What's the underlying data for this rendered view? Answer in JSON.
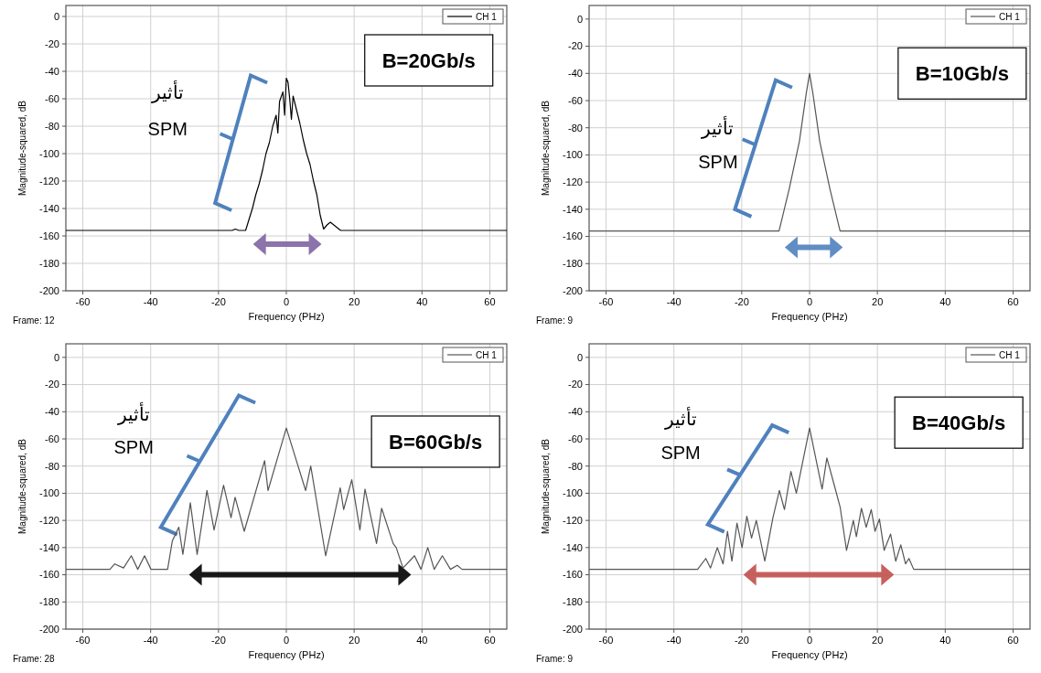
{
  "chart_data": [
    {
      "type": "line",
      "xlabel": "Frequency (PHz)",
      "ylabel": "Magnitude-squared, dB",
      "annotations": [
        "B=20Gb/s",
        "تأثير",
        "SPM",
        "Frame: 12"
      ],
      "xlim": [
        -65,
        65
      ],
      "ylim": [
        -200,
        8
      ],
      "xticks": [
        -60,
        -40,
        -20,
        0,
        20,
        40,
        60
      ],
      "yticks": [
        0,
        -20,
        -40,
        -60,
        -80,
        -100,
        -120,
        -140,
        -160,
        -180,
        -200
      ],
      "grid": true,
      "legend": "top right",
      "marker": "none",
      "line_style": "solid",
      "series": [
        {
          "name": "CH 1",
          "color": "#000000",
          "x": [
            -65,
            -16,
            -15,
            -14,
            -12,
            -11,
            -10,
            -9,
            -8,
            -7,
            -6,
            -5,
            -4,
            -3,
            -2.5,
            -2,
            -1,
            -0.5,
            0,
            0.5,
            1,
            1.5,
            2,
            3,
            4,
            5,
            6,
            7,
            8,
            9,
            10,
            11,
            12,
            13,
            14,
            15,
            16,
            18,
            65
          ],
          "values": [
            -156,
            -156,
            -155,
            -156,
            -156,
            -148,
            -140,
            -130,
            -122,
            -112,
            -100,
            -92,
            -80,
            -72,
            -85,
            -62,
            -55,
            -72,
            -45,
            -48,
            -60,
            -75,
            -58,
            -68,
            -78,
            -90,
            -100,
            -108,
            -120,
            -130,
            -145,
            -155,
            -152,
            -150,
            -152,
            -154,
            -156,
            -156,
            -156
          ]
        }
      ]
    },
    {
      "type": "line",
      "xlabel": "Frequency (PHz)",
      "ylabel": "Magnitude-squared, dB",
      "annotations": [
        "B=10Gb/s",
        "تأثير",
        "SPM",
        "Frame: 9"
      ],
      "xlim": [
        -65,
        65
      ],
      "ylim": [
        -200,
        10
      ],
      "xticks": [
        -60,
        -40,
        -20,
        0,
        20,
        40,
        60
      ],
      "yticks": [
        0,
        -20,
        -40,
        -60,
        -80,
        -100,
        -120,
        -140,
        -160,
        -180,
        -200
      ],
      "grid": true,
      "legend": "top right",
      "marker": "none",
      "line_style": "solid",
      "series": [
        {
          "name": "CH 1",
          "color": "#555555",
          "x": [
            -65,
            -9,
            -6,
            -3,
            -1,
            0,
            1,
            3,
            6,
            9,
            65
          ],
          "values": [
            -156,
            -156,
            -125,
            -90,
            -55,
            -40,
            -55,
            -90,
            -125,
            -156,
            -156
          ]
        }
      ]
    },
    {
      "type": "line",
      "xlabel": "Frequency (PHz)",
      "ylabel": "Magnitude-squared, dB",
      "annotations": [
        "B=60Gb/s",
        "تأثير",
        "SPM",
        "Frame: 28"
      ],
      "xlim": [
        -65,
        65
      ],
      "ylim": [
        -200,
        10
      ],
      "xticks": [
        -60,
        -40,
        -20,
        0,
        20,
        40,
        60
      ],
      "yticks": [
        0,
        -20,
        -40,
        -60,
        -80,
        -100,
        -120,
        -140,
        -160,
        -180,
        -200
      ],
      "grid": true,
      "legend": "top right",
      "marker": "none",
      "line_style": "solid",
      "series": [
        {
          "name": "CH 1",
          "color": "#555555",
          "x": [
            -65,
            -52,
            -50.6,
            -48,
            -45.7,
            -43.8,
            -41.8,
            -39.9,
            -35,
            -33.6,
            -31.7,
            -30.5,
            -28.3,
            -26.3,
            -23.4,
            -21.3,
            -18.5,
            -16.3,
            -15.1,
            -12.4,
            -6.4,
            -5.4,
            0,
            5.7,
            7.2,
            11.6,
            15.9,
            16.9,
            19.3,
            21.7,
            23.2,
            26.6,
            28.1,
            31.5,
            32.4,
            34.4,
            37.8,
            39.7,
            41.7,
            43.6,
            46,
            48.4,
            50.4,
            51.8,
            65
          ],
          "values": [
            -156,
            -156,
            -152,
            -155,
            -146,
            -156,
            -146,
            -156,
            -156,
            -135,
            -125,
            -145,
            -107,
            -145,
            -98,
            -127,
            -94,
            -118,
            -103,
            -128,
            -76,
            -98,
            -52,
            -98,
            -80,
            -146,
            -96,
            -112,
            -90,
            -127,
            -97,
            -137,
            -111,
            -137,
            -140,
            -155,
            -146,
            -156,
            -140,
            -156,
            -146,
            -156,
            -153,
            -156,
            -156
          ]
        }
      ]
    },
    {
      "type": "line",
      "xlabel": "Frequency (PHz)",
      "ylabel": "Magnitude-squared, dB",
      "annotations": [
        "B=40Gb/s",
        "تأثير",
        "SPM",
        "Frame: 9"
      ],
      "xlim": [
        -65,
        65
      ],
      "ylim": [
        -200,
        10
      ],
      "xticks": [
        -60,
        -40,
        -20,
        0,
        20,
        40,
        60
      ],
      "yticks": [
        0,
        -20,
        -40,
        -60,
        -80,
        -100,
        -120,
        -140,
        -160,
        -180,
        -200
      ],
      "grid": true,
      "legend": "top right",
      "marker": "none",
      "line_style": "solid",
      "series": [
        {
          "name": "CH 1",
          "color": "#555555",
          "x": [
            -65,
            -33,
            -30.6,
            -29.2,
            -27.2,
            -25.5,
            -24.2,
            -22.9,
            -21.4,
            -19.9,
            -18.5,
            -17.1,
            -15.7,
            -13.2,
            -10.8,
            -8.9,
            -7.4,
            -5.5,
            -3.9,
            0,
            3.7,
            5.1,
            7.5,
            9,
            10.9,
            12.9,
            13.8,
            15.3,
            16.7,
            18.2,
            19.3,
            20.6,
            22,
            23.9,
            25.4,
            26.9,
            28.3,
            29.3,
            30.7,
            65
          ],
          "values": [
            -156,
            -156,
            -148,
            -155,
            -140,
            -152,
            -128,
            -150,
            -122,
            -140,
            -117,
            -133,
            -120,
            -150,
            -118,
            -98,
            -112,
            -84,
            -100,
            -52,
            -97,
            -74,
            -96,
            -110,
            -142,
            -120,
            -132,
            -111,
            -125,
            -112,
            -128,
            -119,
            -142,
            -130,
            -150,
            -138,
            -152,
            -148,
            -156,
            -156
          ]
        }
      ]
    }
  ]
}
